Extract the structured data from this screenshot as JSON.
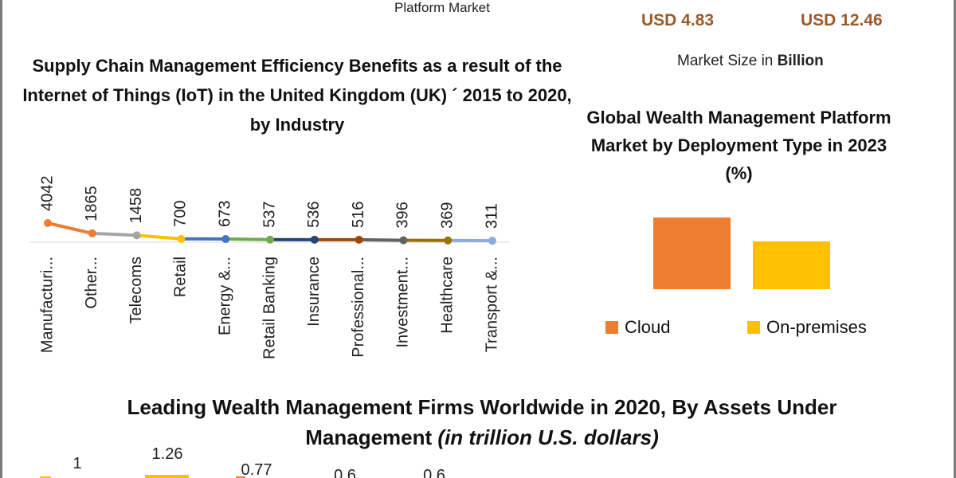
{
  "header": {
    "top_subtitle": "Platform Market",
    "usd_left": "USD 4.83",
    "usd_right": "USD 12.46",
    "market_size_prefix": "Market Size in ",
    "market_size_unit": "Billion"
  },
  "chart_data": [
    {
      "type": "line",
      "title": "Supply Chain Management Efficiency Benefits as a result of the Internet of Things (IoT) in the United Kingdom (UK) ´ 2015 to 2020, by Industry",
      "categories": [
        "Manufacturi...",
        "Other...",
        "Telecoms",
        "Retail",
        "Energy &...",
        "Retail Banking",
        "Insurance",
        "Professional...",
        "Investment...",
        "Healthcare",
        "Transport &..."
      ],
      "values": [
        4042,
        1865,
        1458,
        700,
        673,
        537,
        536,
        516,
        396,
        369,
        311
      ],
      "segment_colors": [
        "#ED7D31",
        "#A5A5A5",
        "#FFC000",
        "#4472C4",
        "#70AD47",
        "#264478",
        "#9E480E",
        "#636363",
        "#997300",
        "#8FAADC",
        "#8FAADC"
      ]
    },
    {
      "type": "bar",
      "title": "Global Wealth Management Platform Market by Deployment Type in 2023 (%)",
      "series": [
        {
          "name": "Cloud",
          "color": "#ED7D31",
          "value": 60
        },
        {
          "name": "On-premises",
          "color": "#FFC000",
          "value": 40
        }
      ]
    },
    {
      "type": "bar",
      "title_main": "Leading Wealth Management Firms Worldwide in 2020, By Assets Under Management ",
      "title_italic": "(in trillion U.S. dollars)",
      "values_visible": [
        "1",
        "1.26",
        "0.77",
        "0.6",
        "0.6"
      ]
    }
  ]
}
